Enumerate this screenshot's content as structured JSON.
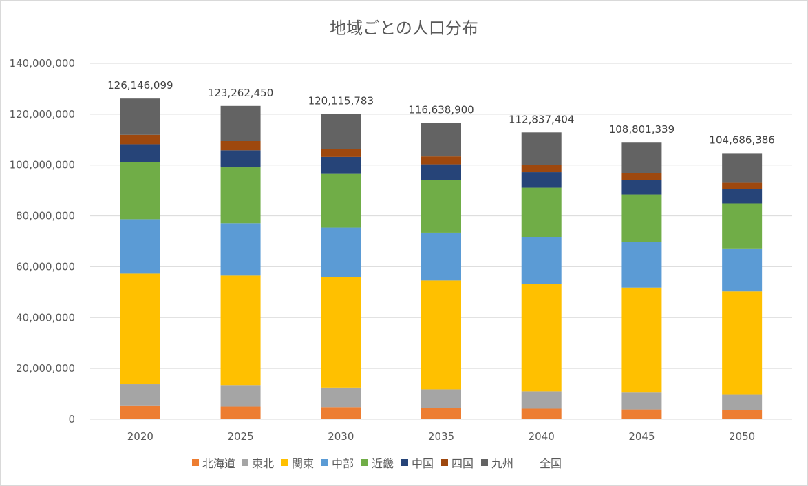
{
  "chart_data": {
    "type": "bar",
    "stacked": true,
    "title": "地域ごとの人口分布",
    "xlabel": "",
    "ylabel": "",
    "ylim": [
      0,
      140000000
    ],
    "yticks": [
      0,
      20000000,
      40000000,
      60000000,
      80000000,
      100000000,
      120000000,
      140000000
    ],
    "ytick_labels": [
      "0",
      "20,000,000",
      "40,000,000",
      "60,000,000",
      "80,000,000",
      "100,000,000",
      "120,000,000",
      "140,000,000"
    ],
    "grid": true,
    "legend_position": "bottom",
    "categories": [
      "2020",
      "2025",
      "2030",
      "2035",
      "2040",
      "2045",
      "2050"
    ],
    "series": [
      {
        "name": "北海道",
        "color": "#ED7D31",
        "values": [
          5200000,
          5000000,
          4800000,
          4500000,
          4200000,
          3900000,
          3600000
        ]
      },
      {
        "name": "東北",
        "color": "#A5A5A5",
        "values": [
          8600000,
          8200000,
          7700000,
          7300000,
          6800000,
          6600000,
          6000000
        ]
      },
      {
        "name": "関東",
        "color": "#FFC000",
        "values": [
          43500000,
          43300000,
          43300000,
          42800000,
          42300000,
          41300000,
          40700000
        ]
      },
      {
        "name": "中部",
        "color": "#5B9BD5",
        "values": [
          21400000,
          20600000,
          19600000,
          18800000,
          18400000,
          17900000,
          16900000
        ]
      },
      {
        "name": "近畿",
        "color": "#70AD47",
        "values": [
          22400000,
          22000000,
          21100000,
          20700000,
          19400000,
          18700000,
          17700000
        ]
      },
      {
        "name": "中国",
        "color": "#264478",
        "values": [
          7100000,
          6700000,
          6700000,
          6200000,
          6100000,
          5600000,
          5600000
        ]
      },
      {
        "name": "四国",
        "color": "#9E480E",
        "values": [
          3700000,
          3600000,
          3200000,
          3100000,
          2900000,
          2800000,
          2500000
        ]
      },
      {
        "name": "九州",
        "color": "#636363",
        "values": [
          14246099,
          13862450,
          13715783,
          13238900,
          12737404,
          12001339,
          11686386
        ]
      }
    ],
    "totals_series": {
      "name": "全国",
      "color": "#FFFFFF",
      "values": [
        126146099,
        123262450,
        120115783,
        116638900,
        112837404,
        108801339,
        104686386
      ]
    },
    "total_labels": [
      "126,146,099",
      "123,262,450",
      "120,115,783",
      "116,638,900",
      "112,837,404",
      "108,801,339",
      "104,686,386"
    ]
  }
}
